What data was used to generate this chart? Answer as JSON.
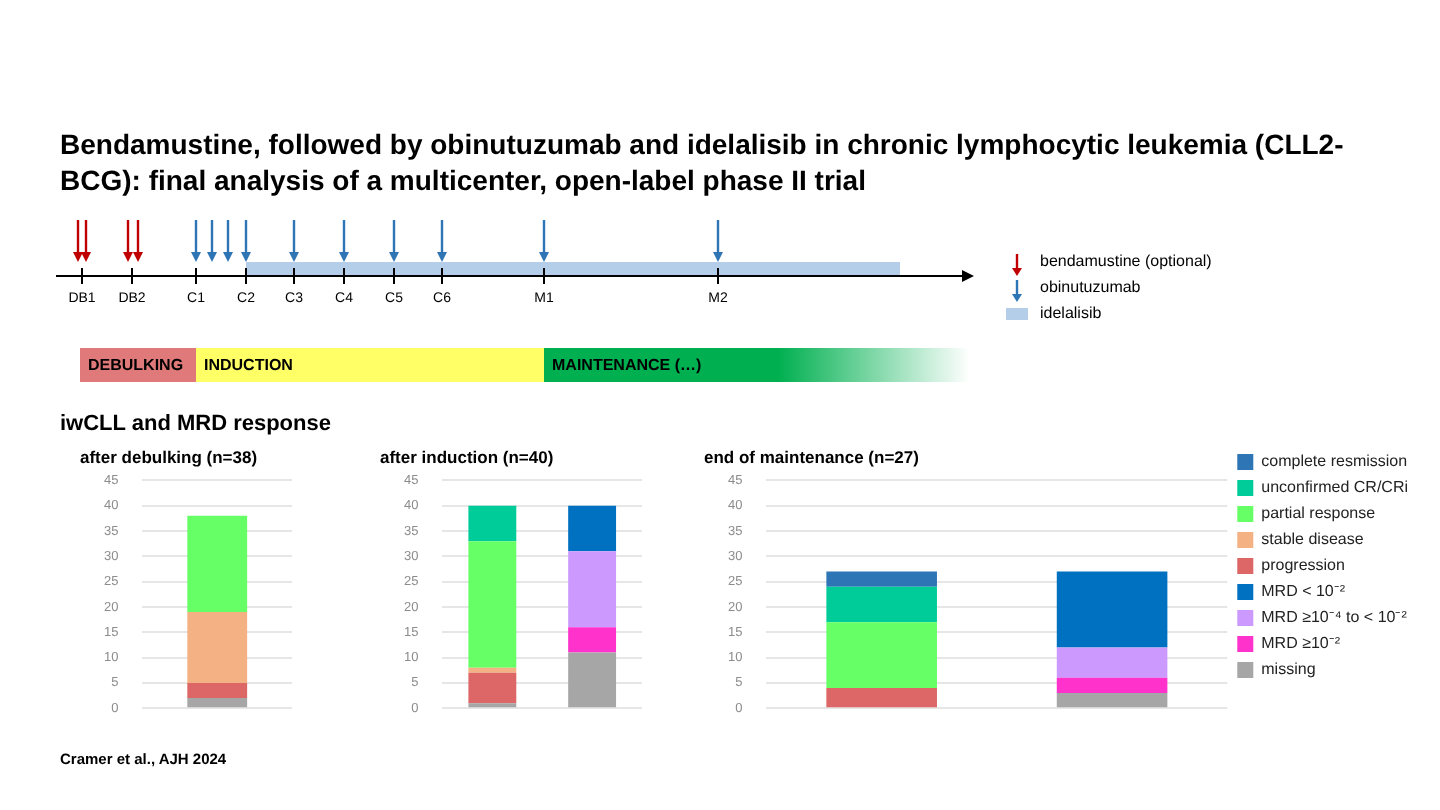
{
  "chart_data": [
    {
      "type": "other",
      "title": "Bendamustine, followed by obinutuzumab and idelalisib in chronic lymphocytic leukemia (CLL2-BCG): final analysis of a multicenter, open-label phase II trial",
      "categories": [
        "DB1",
        "DB2",
        "C1",
        "C2",
        "C3",
        "C4",
        "C5",
        "C6",
        "M1",
        "M2"
      ],
      "annotations": [
        "DEBULKING",
        "INDUCTION",
        "MAINTENANCE (…)",
        "bendamustine (optional)",
        "obinutuzumab",
        "idelalisib"
      ]
    },
    {
      "type": "bar",
      "title": "after debulking (n=38)",
      "subtitle": "iwCLL and MRD response",
      "annotations": [
        "Cramer et al., AJH 2024"
      ],
      "categories": [
        null
      ],
      "stacked": true,
      "ylim": [
        0,
        45
      ],
      "yticks": [
        0,
        5,
        10,
        15,
        20,
        25,
        30,
        35,
        40,
        45
      ],
      "grid": "y",
      "tick_labels": "y",
      "legend": false,
      "series": [
        {
          "color": "#a6a6a6",
          "values": [
            2
          ]
        },
        {
          "color": "#dd6666",
          "values": [
            3
          ]
        },
        {
          "color": "#f4b183",
          "values": [
            14
          ]
        },
        {
          "color": "#66ff66",
          "values": [
            19
          ]
        }
      ]
    },
    {
      "type": "bar",
      "title": "after induction (n=40)",
      "categories": [
        null,
        null
      ],
      "stacked": true,
      "ylim": [
        0,
        45
      ],
      "yticks": [
        0,
        5,
        10,
        15,
        20,
        25,
        30,
        35,
        40,
        45
      ],
      "grid": "y",
      "tick_labels": "y",
      "legend": false,
      "series": [
        {
          "color": "#a6a6a6",
          "values": [
            1,
            11
          ]
        },
        {
          "color": "#ff33cc",
          "values": [
            null,
            5
          ]
        },
        {
          "color": "#cc99ff",
          "values": [
            null,
            15
          ]
        },
        {
          "color": "#0070c0",
          "values": [
            null,
            9
          ]
        },
        {
          "color": "#dd6666",
          "values": [
            6,
            null
          ]
        },
        {
          "color": "#f4b183",
          "values": [
            1,
            null
          ]
        },
        {
          "color": "#66ff66",
          "values": [
            25,
            null
          ]
        },
        {
          "color": "#00cc99",
          "values": [
            7,
            null
          ]
        }
      ]
    },
    {
      "type": "bar",
      "title": "end of maintenance (n=27)",
      "categories": [
        null,
        null
      ],
      "stacked": true,
      "ylim": [
        0,
        45
      ],
      "yticks": [
        0,
        5,
        10,
        15,
        20,
        25,
        30,
        35,
        40,
        45
      ],
      "grid": "y",
      "tick_labels": "y",
      "legend": "right",
      "series": [
        {
          "name": "missing",
          "color": "#a6a6a6",
          "values": [
            null,
            3
          ]
        },
        {
          "name": "MRD ≥10⁻²",
          "color": "#ff33cc",
          "values": [
            null,
            3
          ]
        },
        {
          "name": "MRD ≥10⁻⁴ to < 10⁻²",
          "color": "#cc99ff",
          "values": [
            null,
            6
          ]
        },
        {
          "name": "MRD < 10⁻²",
          "color": "#0070c0",
          "values": [
            null,
            15
          ]
        },
        {
          "name": "progression",
          "color": "#dd6666",
          "values": [
            4,
            null
          ]
        },
        {
          "name": "stable disease",
          "color": "#f4b183",
          "values": [
            0,
            null
          ]
        },
        {
          "name": "partial response",
          "color": "#66ff66",
          "values": [
            13,
            null
          ]
        },
        {
          "name": "unconfirmed CR/CRi",
          "color": "#00cc99",
          "values": [
            7,
            null
          ]
        },
        {
          "name": "complete resmission",
          "color": "#2e75b6",
          "values": [
            3,
            null
          ]
        }
      ]
    }
  ]
}
